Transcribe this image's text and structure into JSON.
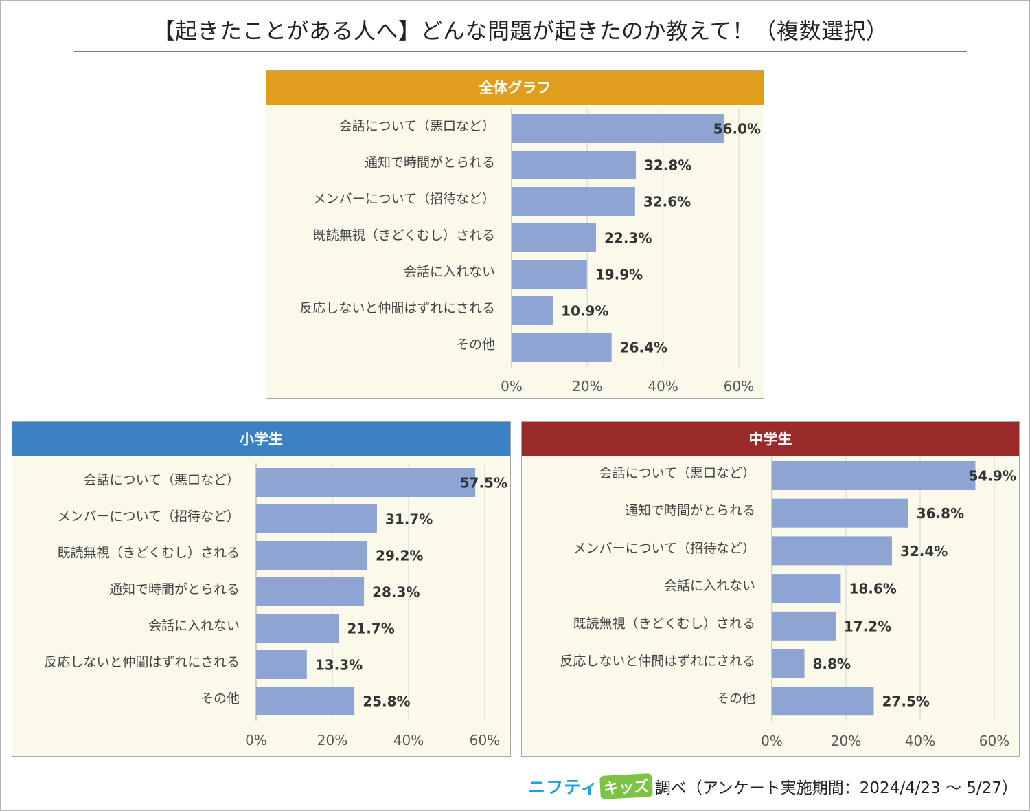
{
  "title": "【起きたことがある人へ】どんな問題が起きたのか教えて！（複数選択）",
  "colors": {
    "bar": "#8ea5d4",
    "panel_bg": "#fbf9ea",
    "grid": "#d9d9d9"
  },
  "footer": {
    "brand_part1": "ニフティ",
    "brand_part2": "キッズ",
    "text": "調べ（アンケート実施期間：2024/4/23 ～ 5/27）"
  },
  "chart_data": [
    {
      "id": "overall",
      "type": "bar",
      "orientation": "horizontal",
      "title": "全体グラフ",
      "header_color": "#e09e1b",
      "categories": [
        "会話について（悪口など）",
        "通知で時間がとられる",
        "メンバーについて（招待など）",
        "既読無視（きどくむし）される",
        "会話に入れない",
        "反応しないと仲間はずれにされる",
        "その他"
      ],
      "values": [
        56.0,
        32.8,
        32.6,
        22.3,
        19.9,
        10.9,
        26.4
      ],
      "value_labels": [
        "56.0%",
        "32.8%",
        "32.6%",
        "22.3%",
        "19.9%",
        "10.9%",
        "26.4%"
      ],
      "xlim": [
        0,
        60
      ],
      "xticks": [
        "0%",
        "20%",
        "40%",
        "60%"
      ],
      "xlabel": "",
      "ylabel": "",
      "grid": true
    },
    {
      "id": "elementary",
      "type": "bar",
      "orientation": "horizontal",
      "title": "小学生",
      "header_color": "#3a82c4",
      "categories": [
        "会話について（悪口など）",
        "メンバーについて（招待など）",
        "既読無視（きどくむし）される",
        "通知で時間がとられる",
        "会話に入れない",
        "反応しないと仲間はずれにされる",
        "その他"
      ],
      "values": [
        57.5,
        31.7,
        29.2,
        28.3,
        21.7,
        13.3,
        25.8
      ],
      "value_labels": [
        "57.5%",
        "31.7%",
        "29.2%",
        "28.3%",
        "21.7%",
        "13.3%",
        "25.8%"
      ],
      "xlim": [
        0,
        60
      ],
      "xticks": [
        "0%",
        "20%",
        "40%",
        "60%"
      ],
      "xlabel": "",
      "ylabel": "",
      "grid": true
    },
    {
      "id": "junior-high",
      "type": "bar",
      "orientation": "horizontal",
      "title": "中学生",
      "header_color": "#9b2a2a",
      "categories": [
        "会話について（悪口など）",
        "通知で時間がとられる",
        "メンバーについて（招待など）",
        "会話に入れない",
        "既読無視（きどくむし）される",
        "反応しないと仲間はずれにされる",
        "その他"
      ],
      "values": [
        54.9,
        36.8,
        32.4,
        18.6,
        17.2,
        8.8,
        27.5
      ],
      "value_labels": [
        "54.9%",
        "36.8%",
        "32.4%",
        "18.6%",
        "17.2%",
        "8.8%",
        "27.5%"
      ],
      "xlim": [
        0,
        60
      ],
      "xticks": [
        "0%",
        "20%",
        "40%",
        "60%"
      ],
      "xlabel": "",
      "ylabel": "",
      "grid": true
    }
  ]
}
